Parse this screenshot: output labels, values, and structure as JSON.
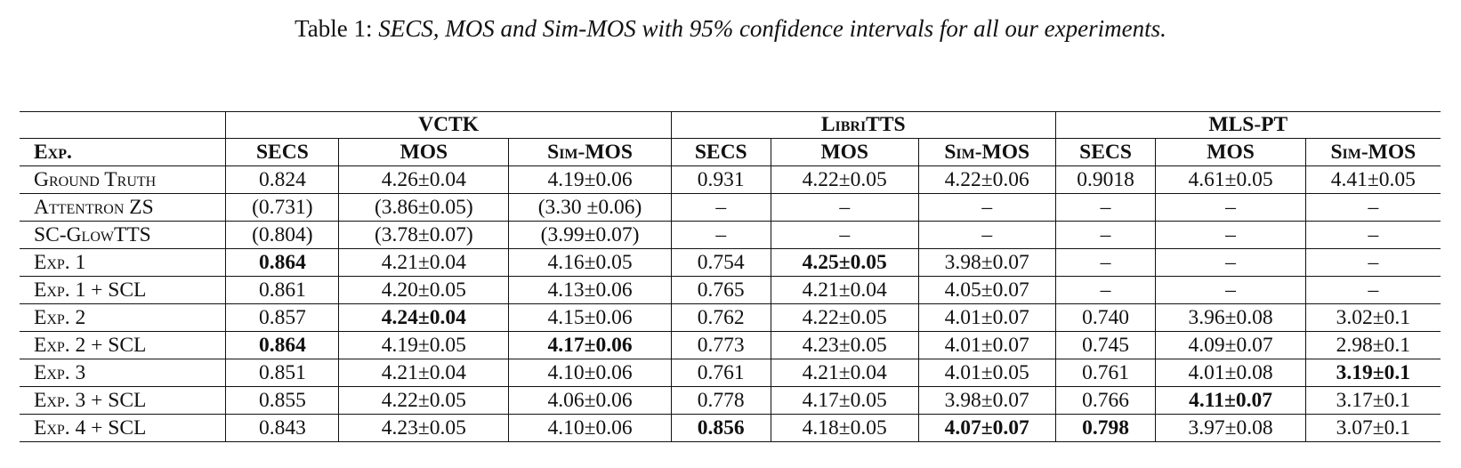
{
  "caption": {
    "label": "Table 1:",
    "text": "SECS, MOS and Sim-MOS with 95% confidence intervals for all our experiments."
  },
  "table": {
    "groups": [
      "VCTK",
      "LibriTTS",
      "MLS-PT"
    ],
    "headers": [
      "Exp.",
      "SECS",
      "MOS",
      "Sim-MOS",
      "SECS",
      "MOS",
      "Sim-MOS",
      "SECS",
      "MOS",
      "Sim-MOS"
    ],
    "rows": [
      {
        "name": "Ground Truth",
        "cells": [
          "0.824",
          "4.26±0.04",
          "4.19±0.06",
          "0.931",
          "4.22±0.05",
          "4.22±0.06",
          "0.9018",
          "4.61±0.05",
          "4.41±0.05"
        ],
        "bold": []
      },
      {
        "name": "Attentron ZS",
        "cells": [
          "(0.731)",
          "(3.86±0.05)",
          "(3.30 ±0.06)",
          "–",
          "–",
          "–",
          "–",
          "–",
          "–"
        ],
        "bold": []
      },
      {
        "name": "SC-GlowTTS",
        "cells": [
          "(0.804)",
          "(3.78±0.07)",
          "(3.99±0.07)",
          "–",
          "–",
          "–",
          "–",
          "–",
          "–"
        ],
        "bold": []
      },
      {
        "name": "Exp. 1",
        "cells": [
          "0.864",
          "4.21±0.04",
          "4.16±0.05",
          "0.754",
          "4.25±0.05",
          "3.98±0.07",
          "–",
          "–",
          "–"
        ],
        "bold": [
          0,
          4
        ]
      },
      {
        "name": "Exp. 1 + SCL",
        "cells": [
          "0.861",
          "4.20±0.05",
          "4.13±0.06",
          "0.765",
          "4.21±0.04",
          "4.05±0.07",
          "–",
          "–",
          "–"
        ],
        "bold": []
      },
      {
        "name": "Exp. 2",
        "cells": [
          "0.857",
          "4.24±0.04",
          "4.15±0.06",
          "0.762",
          "4.22±0.05",
          "4.01±0.07",
          "0.740",
          "3.96±0.08",
          "3.02±0.1"
        ],
        "bold": [
          1
        ]
      },
      {
        "name": "Exp. 2 + SCL",
        "cells": [
          "0.864",
          "4.19±0.05",
          "4.17±0.06",
          "0.773",
          "4.23±0.05",
          "4.01±0.07",
          "0.745",
          "4.09±0.07",
          "2.98±0.1"
        ],
        "bold": [
          0,
          2
        ]
      },
      {
        "name": "Exp. 3",
        "cells": [
          "0.851",
          "4.21±0.04",
          "4.10±0.06",
          "0.761",
          "4.21±0.04",
          "4.01±0.05",
          "0.761",
          "4.01±0.08",
          "3.19±0.1"
        ],
        "bold": [
          8
        ]
      },
      {
        "name": "Exp. 3 + SCL",
        "cells": [
          "0.855",
          "4.22±0.05",
          "4.06±0.06",
          "0.778",
          "4.17±0.05",
          "3.98±0.07",
          "0.766",
          "4.11±0.07",
          "3.17±0.1"
        ],
        "bold": [
          7
        ]
      },
      {
        "name": "Exp. 4 + SCL",
        "cells": [
          "0.843",
          "4.23±0.05",
          "4.10±0.06",
          "0.856",
          "4.18±0.05",
          "4.07±0.07",
          "0.798",
          "3.97±0.08",
          "3.07±0.1"
        ],
        "bold": [
          3,
          5,
          6
        ]
      }
    ]
  }
}
